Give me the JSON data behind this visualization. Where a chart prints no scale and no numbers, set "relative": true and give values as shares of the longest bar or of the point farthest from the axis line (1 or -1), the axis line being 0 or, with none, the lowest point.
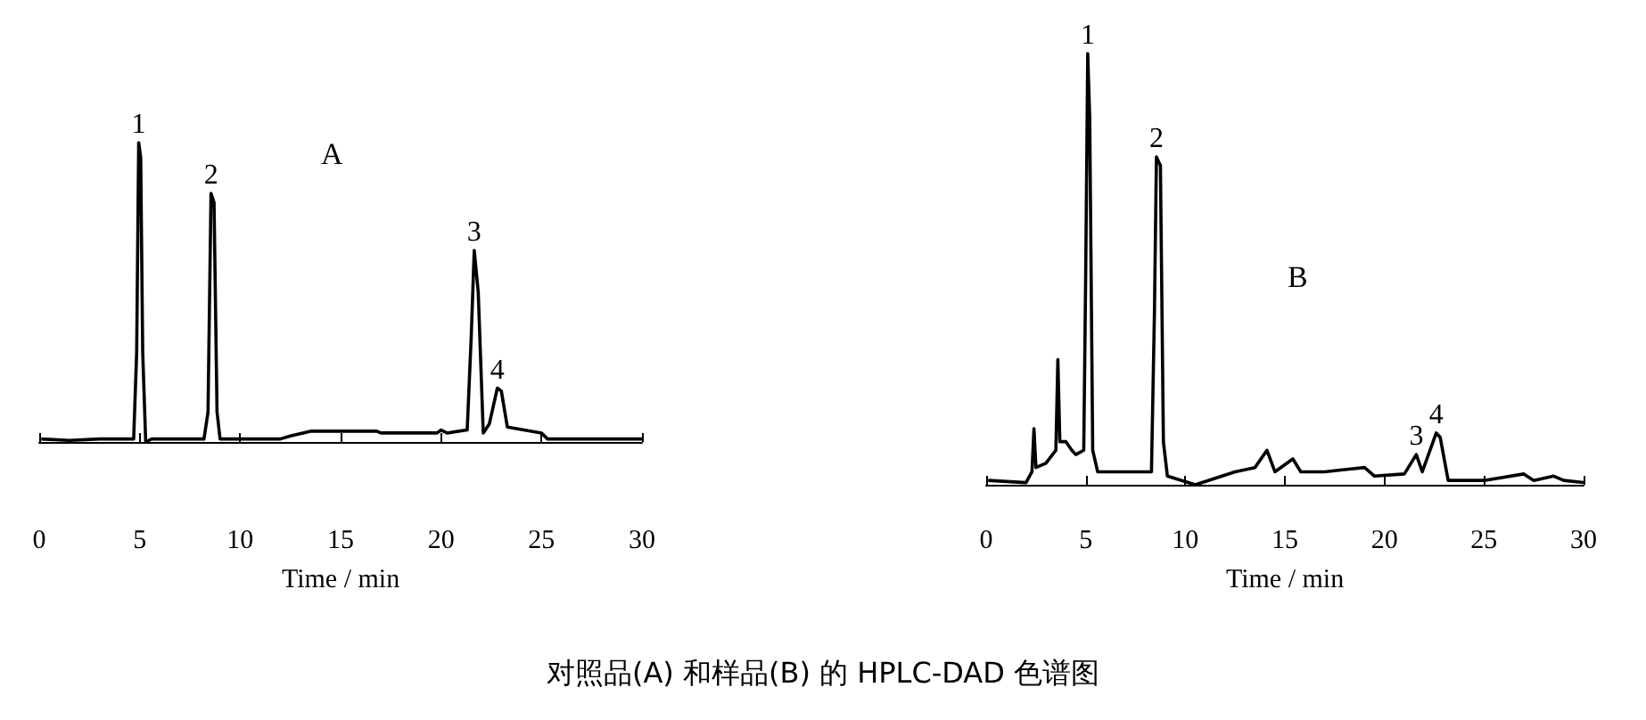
{
  "chart_data": [
    {
      "type": "line",
      "relative": true,
      "xlabel": "Time / min",
      "xlim": [
        0,
        30
      ],
      "xticks": [
        0,
        5,
        10,
        15,
        20,
        25,
        30
      ],
      "tick_labels": "x",
      "grid": false,
      "marker": "none",
      "line_style": "solid",
      "x": [
        0.1,
        1.5,
        3,
        4.7,
        4.85,
        4.95,
        5.05,
        5.15,
        5.3,
        5.6,
        8.2,
        8.4,
        8.55,
        8.7,
        8.85,
        9.0,
        12,
        12.5,
        13.5,
        16.8,
        17,
        19.8,
        20,
        20.3,
        21.3,
        21.5,
        21.65,
        21.85,
        22.1,
        22.4,
        22.8,
        23.0,
        23.3,
        25,
        25.3,
        30
      ],
      "series": [
        {
          "color": "#000000",
          "values": [
            0.01,
            0.005,
            0.01,
            0.01,
            0.3,
            1,
            0.95,
            0.3,
            0,
            0.01,
            0.01,
            0.1,
            0.83,
            0.8,
            0.1,
            0.01,
            0.01,
            0.02,
            0.036,
            0.036,
            0.03,
            0.03,
            0.04,
            0.03,
            0.04,
            0.35,
            0.64,
            0.5,
            0.03,
            0.06,
            0.18,
            0.17,
            0.05,
            0.03,
            0.01,
            0.01
          ]
        }
      ],
      "annotations": [
        "A",
        {
          "text": "1",
          "x": 4.95,
          "y": 1
        },
        {
          "text": "2",
          "x": 8.55,
          "y": 0.83
        },
        {
          "text": "3",
          "x": 21.65,
          "y": 0.64
        },
        {
          "text": "4",
          "x": 22.8,
          "y": 0.18
        }
      ]
    },
    {
      "type": "line",
      "relative": true,
      "xlabel": "Time / min",
      "xlim": [
        0,
        30
      ],
      "xticks": [
        0,
        5,
        10,
        15,
        20,
        25,
        30
      ],
      "tick_labels": "x",
      "grid": false,
      "marker": "none",
      "line_style": "solid",
      "x": [
        0.1,
        2.0,
        2.3,
        2.4,
        2.5,
        3.0,
        3.5,
        3.6,
        3.7,
        4.0,
        4.3,
        4.5,
        4.9,
        5.0,
        5.1,
        5.2,
        5.35,
        5.6,
        8.3,
        8.45,
        8.55,
        8.75,
        8.9,
        9.1,
        10.5,
        12.5,
        13.5,
        14.1,
        14.5,
        15.4,
        15.8,
        17,
        18,
        19,
        19.5,
        21,
        21.6,
        21.9,
        22.6,
        22.8,
        23.2,
        25,
        27,
        27.5,
        28.5,
        29,
        30
      ],
      "series": [
        {
          "color": "#000000",
          "values": [
            0.01,
            0.005,
            0.03,
            0.13,
            0.04,
            0.05,
            0.08,
            0.29,
            0.1,
            0.1,
            0.08,
            0.07,
            0.08,
            0.5,
            1,
            0.85,
            0.08,
            0.03,
            0.03,
            0.4,
            0.76,
            0.74,
            0.1,
            0.02,
            0,
            0.03,
            0.04,
            0.08,
            0.03,
            0.06,
            0.03,
            0.03,
            0.035,
            0.04,
            0.02,
            0.025,
            0.07,
            0.03,
            0.12,
            0.11,
            0.01,
            0.01,
            0.025,
            0.01,
            0.02,
            0.01,
            0.005
          ]
        }
      ],
      "annotations": [
        "B",
        {
          "text": "1",
          "x": 5.1,
          "y": 1
        },
        {
          "text": "2",
          "x": 8.55,
          "y": 0.76
        },
        {
          "text": "3",
          "x": 21.6,
          "y": 0.07
        },
        {
          "text": "4",
          "x": 22.6,
          "y": 0.12
        }
      ]
    },
    {
      "type": "other",
      "annotations": [
        "对照品(A) 和样品(B) 的 HPLC-DAD 色谱图"
      ]
    }
  ]
}
